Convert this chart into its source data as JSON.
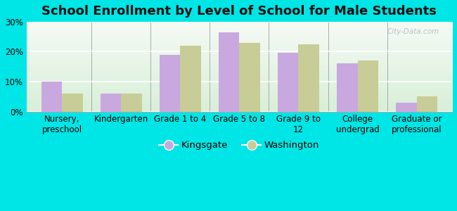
{
  "title": "School Enrollment by Level of School for Male Students",
  "categories": [
    "Nursery,\npreschool",
    "Kindergarten",
    "Grade 1 to 4",
    "Grade 5 to 8",
    "Grade 9 to\n12",
    "College\nundergrad",
    "Graduate or\nprofessional"
  ],
  "kingsgate": [
    10.0,
    6.0,
    19.0,
    26.5,
    19.5,
    16.0,
    3.0
  ],
  "washington": [
    6.0,
    6.0,
    22.0,
    23.0,
    22.5,
    17.0,
    5.0
  ],
  "kingsgate_color": "#c9a8e0",
  "washington_color": "#c8cc96",
  "background_color": "#00e5e5",
  "plot_bg_top": "#f5faf5",
  "plot_bg_bottom": "#d8efd8",
  "ylim": [
    0,
    30
  ],
  "yticks": [
    0,
    10,
    20,
    30
  ],
  "title_fontsize": 13,
  "tick_fontsize": 8.5,
  "legend_fontsize": 9.5,
  "bar_width": 0.35,
  "watermark": "City-Data.com"
}
